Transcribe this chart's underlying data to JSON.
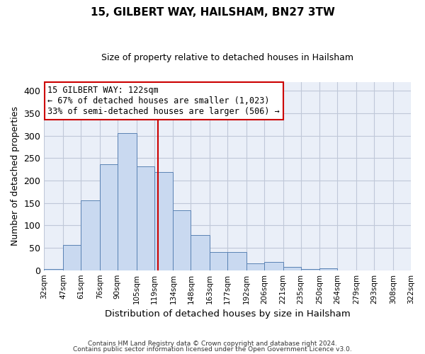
{
  "title": "15, GILBERT WAY, HAILSHAM, BN27 3TW",
  "subtitle": "Size of property relative to detached houses in Hailsham",
  "xlabel": "Distribution of detached houses by size in Hailsham",
  "ylabel": "Number of detached properties",
  "bar_values": [
    3,
    57,
    155,
    237,
    305,
    232,
    219,
    133,
    78,
    41,
    41,
    15,
    19,
    8,
    3,
    5,
    0,
    0,
    0,
    0
  ],
  "bin_edges": [
    32,
    47,
    61,
    76,
    90,
    105,
    119,
    134,
    148,
    163,
    177,
    192,
    206,
    221,
    235,
    250,
    264,
    279,
    293,
    308,
    322
  ],
  "tick_labels": [
    "32sqm",
    "47sqm",
    "61sqm",
    "76sqm",
    "90sqm",
    "105sqm",
    "119sqm",
    "134sqm",
    "148sqm",
    "163sqm",
    "177sqm",
    "192sqm",
    "206sqm",
    "221sqm",
    "235sqm",
    "250sqm",
    "264sqm",
    "279sqm",
    "293sqm",
    "308sqm",
    "322sqm"
  ],
  "bar_color": "#c9d9f0",
  "bar_edge_color": "#5a82b4",
  "grid_color": "#c0c8d8",
  "bg_color": "#eaeff8",
  "vline_x": 122,
  "vline_color": "#cc0000",
  "annotation_text": "15 GILBERT WAY: 122sqm\n← 67% of detached houses are smaller (1,023)\n33% of semi-detached houses are larger (506) →",
  "annotation_box_color": "#cc0000",
  "ylim": [
    0,
    420
  ],
  "yticks": [
    0,
    50,
    100,
    150,
    200,
    250,
    300,
    350,
    400
  ],
  "footer1": "Contains HM Land Registry data © Crown copyright and database right 2024.",
  "footer2": "Contains public sector information licensed under the Open Government Licence v3.0."
}
